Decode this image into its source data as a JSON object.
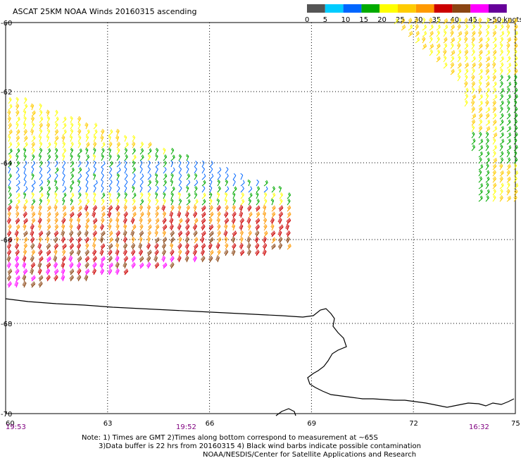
{
  "title": "ASCAT 25KM NOAA Winds 20160315 ascending",
  "legend": {
    "labels": [
      "0",
      "5",
      "10",
      "15",
      "20",
      "25",
      "30",
      "35",
      "40",
      "45",
      ">50 knots"
    ],
    "colors": [
      "#555555",
      "#00ccff",
      "#0066ff",
      "#00aa00",
      "#ffff00",
      "#ffcc00",
      "#ff9900",
      "#cc0000",
      "#8b4513",
      "#ff00ff",
      "#660099"
    ]
  },
  "axes": {
    "x_ticks": [
      "60",
      "63",
      "66",
      "69",
      "72",
      "75"
    ],
    "y_ticks": [
      "-60",
      "-62",
      "-64",
      "-66",
      "-68",
      "-70"
    ]
  },
  "times": [
    "19:53",
    "19:52",
    "16:32"
  ],
  "notes": [
    "Note: 1) Times are GMT 2)Times along bottom correspond to measurement at ~65S",
    "3)Data buffer is 22 hrs from 20160315 4) Black wind barbs indicate possible contamination",
    "NOAA/NESDIS/Center for Satellite Applications and Research"
  ],
  "chart_data": {
    "type": "map",
    "lon_range": [
      60,
      75
    ],
    "lat_range": [
      -70,
      -60
    ],
    "grid": true,
    "wind_speed_units": "knots",
    "swaths": [
      {
        "region": "west",
        "lon_range": [
          60,
          68.5
        ],
        "lat_range": [
          -67.2,
          -62.1
        ],
        "dominant_speeds_knots": [
          10,
          15,
          20,
          25,
          30,
          35,
          40,
          45
        ]
      },
      {
        "region": "northeast",
        "lon_range": [
          72.3,
          75
        ],
        "lat_range": [
          -63.3,
          -60
        ],
        "dominant_speeds_knots": [
          15,
          20,
          25
        ]
      }
    ]
  }
}
